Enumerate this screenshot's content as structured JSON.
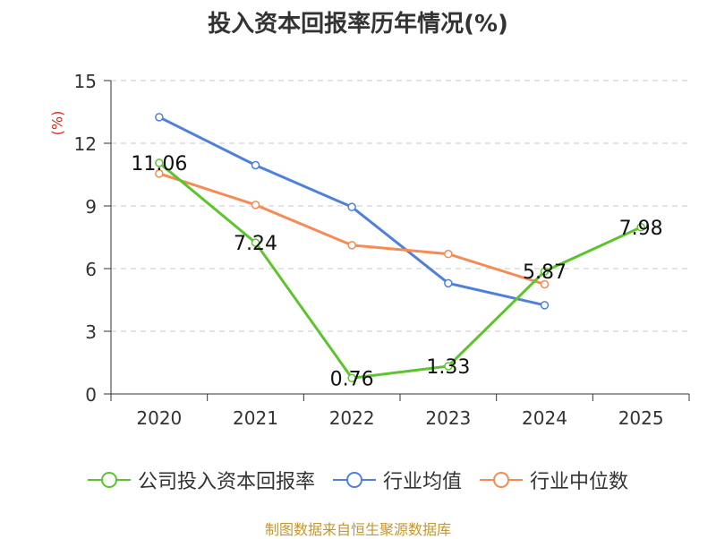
{
  "chart_data": {
    "type": "line",
    "title": "投入资本回报率历年情况(%)",
    "ylabel": "(%)",
    "categories": [
      "2020",
      "2021",
      "2022",
      "2023",
      "2024",
      "2025"
    ],
    "ylim": [
      0,
      15
    ],
    "yticks": [
      0,
      3,
      6,
      9,
      12,
      15
    ],
    "grid": true,
    "legend_position": "bottom",
    "series": [
      {
        "name": "公司投入资本回报率",
        "color": "#5ec42d",
        "values": [
          11.06,
          7.24,
          0.76,
          1.33,
          5.87,
          7.98
        ],
        "labels": [
          "11.06",
          "7.24",
          "0.76",
          "1.33",
          "5.87",
          "7.98"
        ]
      },
      {
        "name": "行业均值",
        "color": "#4f80db",
        "values": [
          13.25,
          10.95,
          8.95,
          5.3,
          4.25,
          null
        ]
      },
      {
        "name": "行业中位数",
        "color": "#f58c54",
        "values": [
          10.55,
          9.05,
          7.12,
          6.7,
          5.25,
          null
        ]
      }
    ]
  },
  "source": "制图数据来自恒生聚源数据库"
}
